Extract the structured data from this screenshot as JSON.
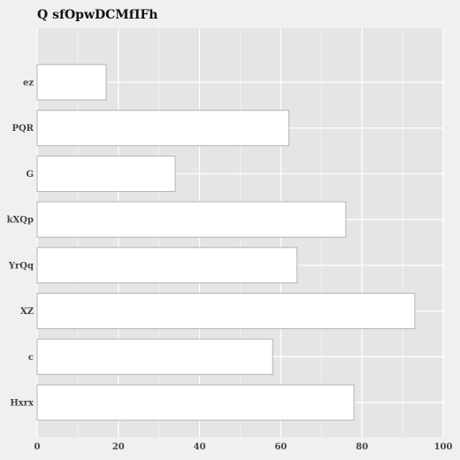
{
  "chart_data": {
    "type": "bar",
    "orientation": "horizontal",
    "title": "Q sfOpwDCMfIFh",
    "xlabel": "",
    "ylabel": "",
    "categories": [
      "ez",
      "PQR",
      "G",
      "kXQp",
      "YrQq",
      "XZ",
      "c",
      "Hxrx"
    ],
    "values": [
      17,
      62,
      34,
      76,
      64,
      93,
      58,
      78
    ],
    "xlim": [
      0,
      100
    ],
    "xticks": [
      0,
      20,
      40,
      60,
      80,
      100
    ],
    "grid": true,
    "legend": "none",
    "colors": {
      "page_background": "#f0f0f0",
      "plot_background": "#e5e5e5",
      "grid": "#ffffff",
      "bar_fill": "#ffffff",
      "bar_stroke": "#b3b3b3"
    }
  }
}
